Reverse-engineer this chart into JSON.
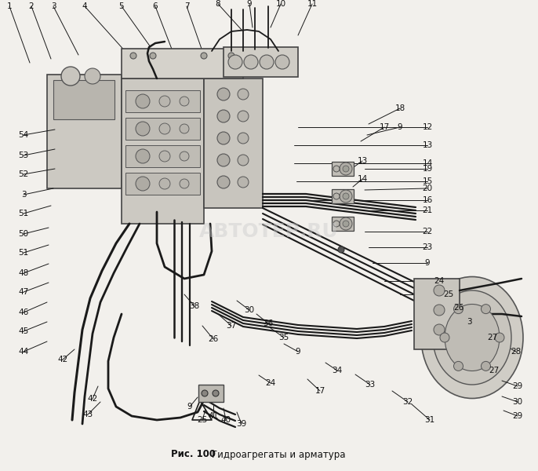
{
  "background_color": "#f2f0ec",
  "line_color": "#1a1a1a",
  "text_color": "#111111",
  "caption_prefix": "Рис. 100",
  "caption_text": "    Гидроагрегаты и арматура",
  "watermark": "АВTOТЕР.RU",
  "fig_width": 6.86,
  "fig_height": 6.0,
  "dpi": 100
}
